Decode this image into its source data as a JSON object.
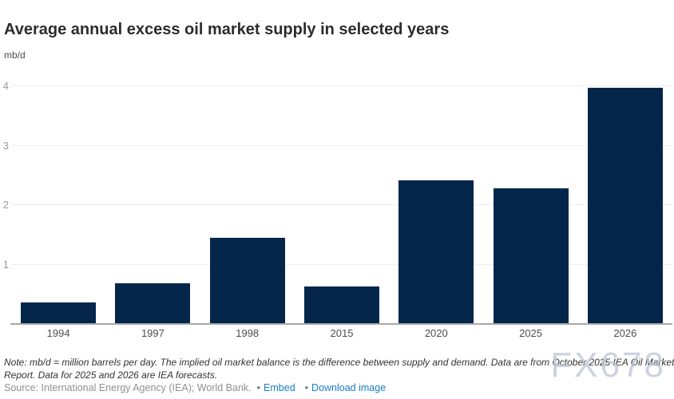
{
  "chart": {
    "title": "Average annual excess oil market supply in selected years",
    "units_label": "mb/d"
  },
  "chart_data": {
    "type": "bar",
    "categories": [
      "1994",
      "1997",
      "1998",
      "2015",
      "2020",
      "2025",
      "2026"
    ],
    "values": [
      0.35,
      0.67,
      1.44,
      0.62,
      2.4,
      2.27,
      3.96
    ],
    "title": "Average annual excess oil market supply in selected years",
    "xlabel": "",
    "ylabel": "mb/d",
    "ylim": [
      0,
      4.25
    ],
    "yticks": [
      1,
      2,
      3,
      4
    ],
    "grid": true,
    "legend": "none",
    "bar_color": "#03264a"
  },
  "footer": {
    "note_line1": "Note: mb/d = million barrels per day. The implied oil market balance is the difference between supply and demand. Data are from October 2025 IEA Oil Market",
    "note_line2": "Report. Data for 2025 and 2026 are IEA forecasts.",
    "source_text": "Source: International Energy Agency (IEA); World Bank.",
    "bullet": "•",
    "embed_label": "Embed",
    "download_label": "Download image",
    "link_color": "#1a7fc4",
    "watermark": "FX678"
  }
}
